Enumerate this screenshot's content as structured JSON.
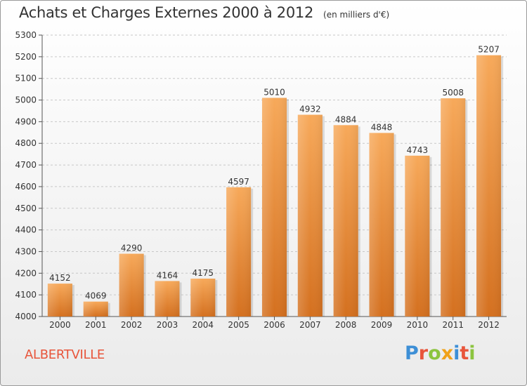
{
  "header": {
    "title": "Achats et Charges Externes 2000 à 2012",
    "subtitle": "(en milliers d'€)"
  },
  "footer": {
    "city": "ALBERTVILLE",
    "logo_letters": [
      {
        "ch": "P",
        "color": "#3d8fd6"
      },
      {
        "ch": "r",
        "color": "#e8553b"
      },
      {
        "ch": "o",
        "color": "#8cc43f"
      },
      {
        "ch": "x",
        "color": "#f0a21a"
      },
      {
        "ch": "i",
        "color": "#3d8fd6"
      },
      {
        "ch": "t",
        "color": "#e8553b"
      },
      {
        "ch": "i",
        "color": "#8cc43f"
      }
    ]
  },
  "chart_data": {
    "type": "bar",
    "title": "Achats et Charges Externes 2000 à 2012",
    "subtitle": "(en milliers d'€)",
    "categories": [
      "2000",
      "2001",
      "2002",
      "2003",
      "2004",
      "2005",
      "2006",
      "2007",
      "2008",
      "2009",
      "2010",
      "2011",
      "2012"
    ],
    "values": [
      4152,
      4069,
      4290,
      4164,
      4175,
      4597,
      5010,
      4932,
      4884,
      4848,
      4743,
      5008,
      5207
    ],
    "ylim": [
      4000,
      5300
    ],
    "yticks": [
      4000,
      4100,
      4200,
      4300,
      4400,
      4500,
      4600,
      4700,
      4800,
      4900,
      5000,
      5100,
      5200,
      5300
    ],
    "grid": true,
    "bar_color_top": "#f7a95a",
    "bar_color_bottom": "#d4701f"
  }
}
